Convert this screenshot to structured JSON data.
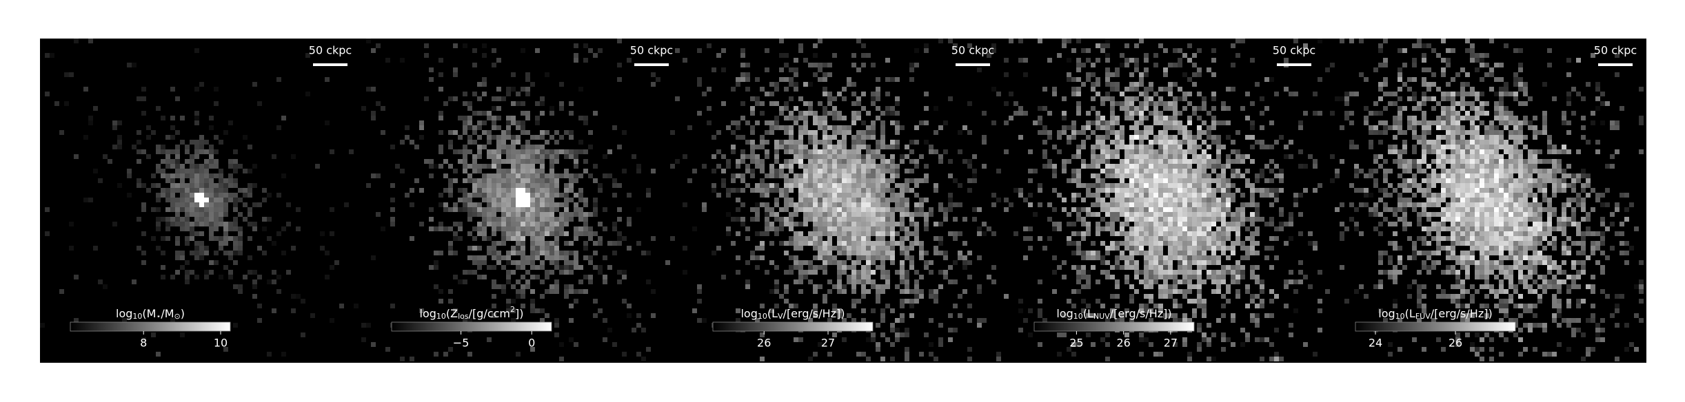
{
  "chart_data": [
    {
      "type": "image",
      "scalebar": "50 ckpc",
      "colorbar": {
        "label": "log_{10}(M_{⋆}/M_{⊙})",
        "lim": [
          6.1,
          10.25
        ],
        "ticks": [
          8,
          10
        ]
      }
    },
    {
      "type": "image",
      "scalebar": "50 ckpc",
      "colorbar": {
        "label": "log_{10}(Z_{los}/[g/ccm^{2}])",
        "lim": [
          -9.9,
          1.4
        ],
        "ticks": [
          {
            "value": -5,
            "label": "−5"
          },
          0
        ]
      }
    },
    {
      "type": "image",
      "scalebar": "50 ckpc",
      "colorbar": {
        "label": "log_{10}(L_{V}/[erg/s/Hz])",
        "lim": [
          25.2,
          27.7
        ],
        "ticks": [
          26,
          27
        ]
      }
    },
    {
      "type": "image",
      "scalebar": "50 ckpc",
      "colorbar": {
        "label": "log_{10}(L_{NUV}/[erg/s/Hz])",
        "lim": [
          24.1,
          27.5
        ],
        "ticks": [
          25,
          26,
          27
        ]
      }
    },
    {
      "type": "image",
      "scalebar": "50 ckpc",
      "colorbar": {
        "label": "log_{10}(L_{FUV}/[erg/s/Hz])",
        "lim": [
          23.5,
          27.5
        ],
        "ticks": [
          24,
          26
        ]
      }
    }
  ]
}
